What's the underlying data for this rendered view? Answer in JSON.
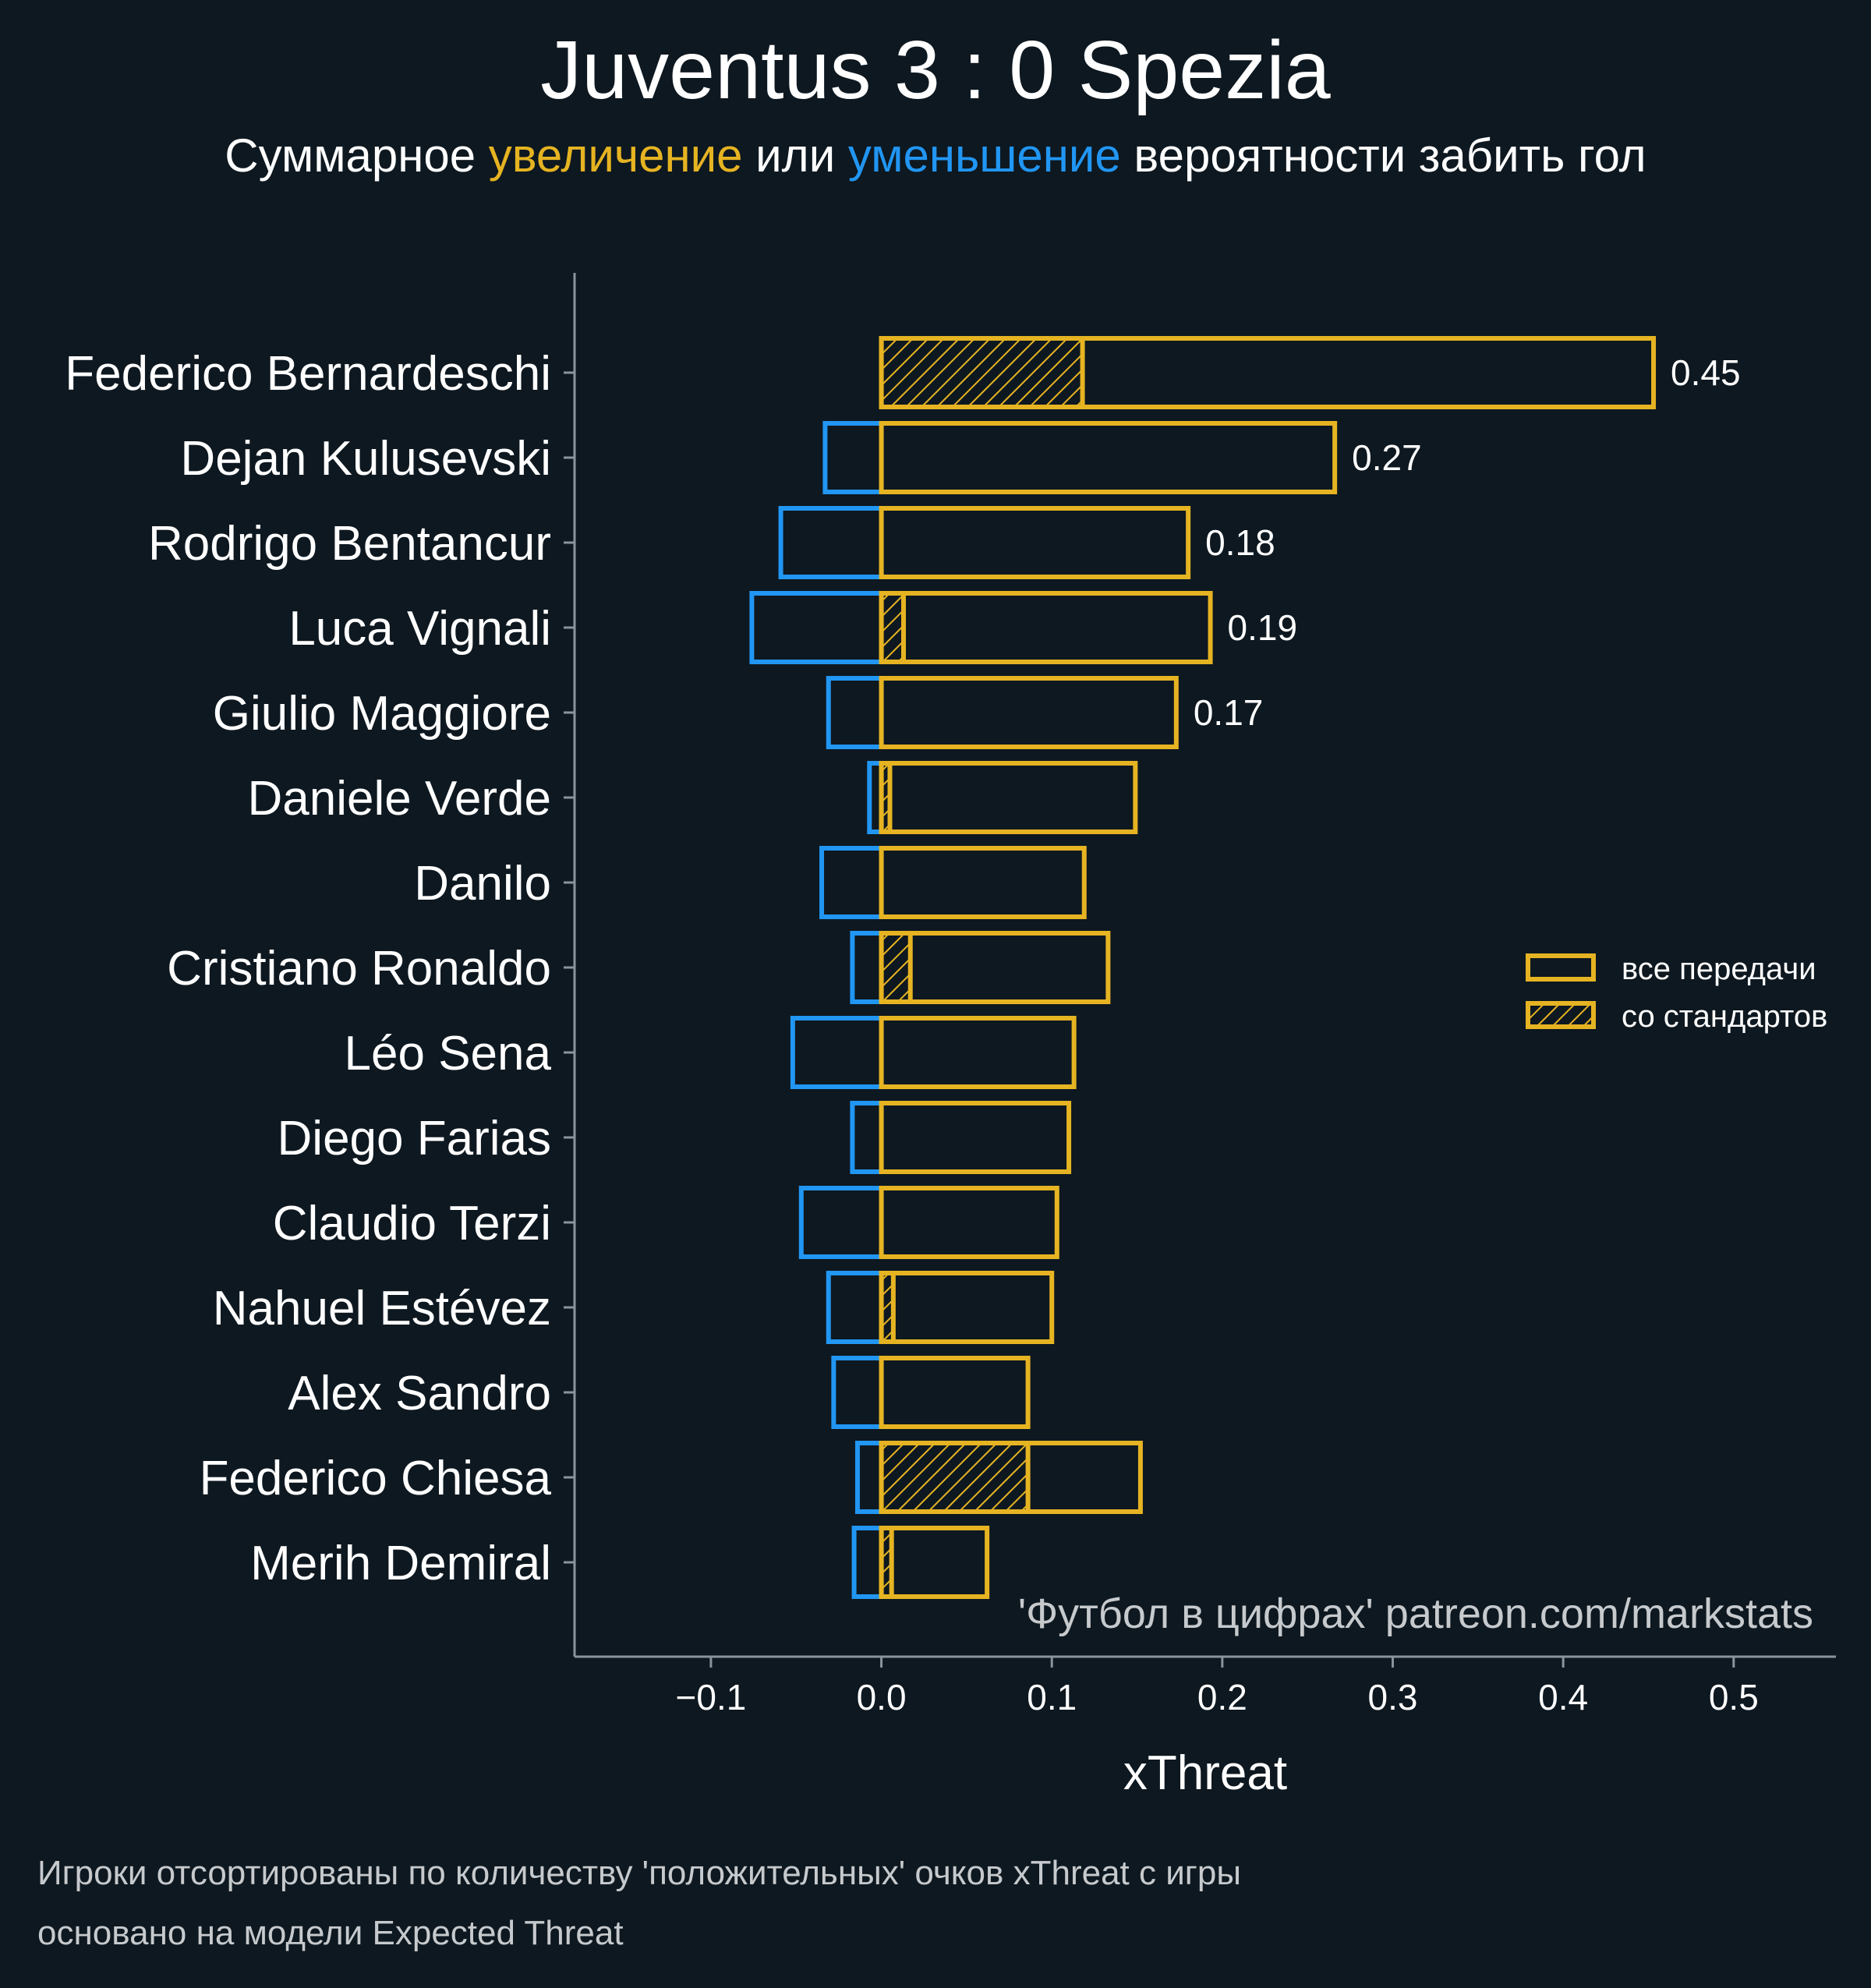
{
  "title": "Juventus 3 : 0 Spezia",
  "subtitle": {
    "part1": "Суммарное ",
    "up_word": "увеличение",
    "part2": " или ",
    "down_word": "уменьшение",
    "part3": " вероятности забить гол"
  },
  "colors": {
    "background": "#0e1820",
    "positive": "#e6b422",
    "negative": "#2196f3",
    "axis": "#8a949c",
    "text": "#ffffff",
    "muted": "#c6cacd"
  },
  "watermark": "'Футбол в цифрах' patreon.com/markstats",
  "footer": {
    "line1": "Игроки отсортированы по количеству 'положительных' очков xThreat с игры",
    "line2": "основано на модели Expected Threat"
  },
  "chart_data": {
    "type": "bar",
    "orientation": "horizontal",
    "xlabel": "xThreat",
    "ylabel": "",
    "xlim": [
      -0.18,
      0.56
    ],
    "xticks": [
      -0.1,
      0.0,
      0.1,
      0.2,
      0.3,
      0.4,
      0.5
    ],
    "xtick_labels": [
      "−0.1",
      "0.0",
      "0.1",
      "0.2",
      "0.3",
      "0.4",
      "0.5"
    ],
    "grid": false,
    "legend": {
      "position": "right",
      "entries": [
        {
          "label": "все передачи",
          "style": "outline"
        },
        {
          "label": "со стандартов",
          "style": "hatched"
        }
      ]
    },
    "categories": [
      "Federico Bernardeschi",
      "Dejan Kulusevski",
      "Rodrigo Bentancur",
      "Luca Vignali",
      "Giulio Maggiore",
      "Daniele Verde",
      "Danilo",
      "Cristiano Ronaldo",
      "Léo Sena",
      "Diego Farias",
      "Claudio Terzi",
      "Nahuel Estévez",
      "Alex Sandro",
      "Federico Chiesa",
      "Merih Demiral"
    ],
    "series": [
      {
        "name": "positive (все передачи)",
        "values": [
          0.453,
          0.266,
          0.18,
          0.193,
          0.173,
          0.149,
          0.119,
          0.133,
          0.113,
          0.11,
          0.103,
          0.1,
          0.086,
          0.152,
          0.062
        ]
      },
      {
        "name": "negative (все передачи)",
        "values": [
          0.0,
          -0.033,
          -0.059,
          -0.076,
          -0.031,
          -0.007,
          -0.035,
          -0.017,
          -0.052,
          -0.017,
          -0.047,
          -0.031,
          -0.028,
          -0.014,
          -0.016
        ]
      },
      {
        "name": "со стандартов",
        "values": [
          0.118,
          0.0,
          0.0,
          0.013,
          0.0,
          0.005,
          0.0,
          0.017,
          0.0,
          0.0,
          0.0,
          0.007,
          0.0,
          0.086,
          0.006
        ]
      }
    ],
    "data_labels": [
      {
        "category": "Federico Bernardeschi",
        "text": "0.45"
      },
      {
        "category": "Dejan Kulusevski",
        "text": "0.27"
      },
      {
        "category": "Rodrigo Bentancur",
        "text": "0.18"
      },
      {
        "category": "Luca Vignali",
        "text": "0.19"
      },
      {
        "category": "Giulio Maggiore",
        "text": "0.17"
      }
    ]
  }
}
